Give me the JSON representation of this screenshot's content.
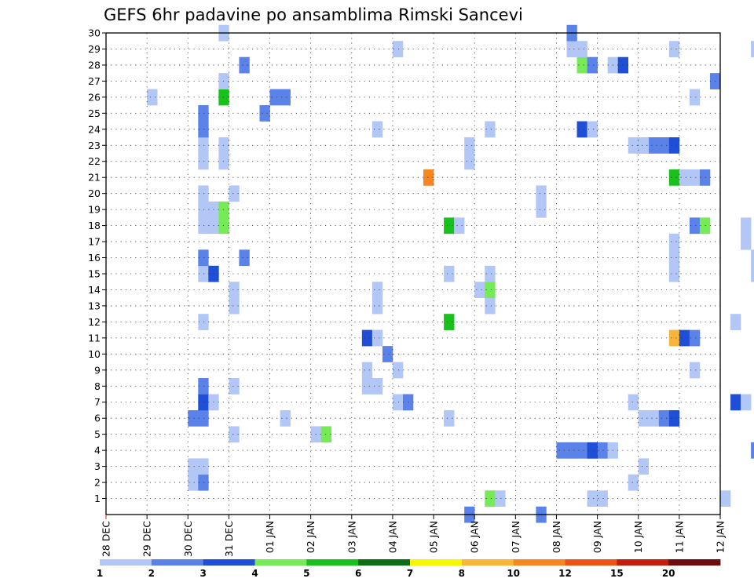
{
  "chart_data": {
    "type": "heatmap",
    "title": "GEFS 6hr padavine po ansamblima Rimski Sancevi",
    "xlabel": "",
    "ylabel": "",
    "x_ticks": [
      "28 DEC",
      "29 DEC",
      "30 DEC",
      "31 DEC",
      "01 JAN",
      "02 JAN",
      "03 JAN",
      "04 JAN",
      "05 JAN",
      "06 JAN",
      "07 JAN",
      "08 JAN",
      "09 JAN",
      "10 JAN",
      "11 JAN",
      "12 JAN"
    ],
    "xlim": [
      "28 DEC",
      "12 JAN"
    ],
    "ylim": [
      0,
      30
    ],
    "y_ticks": [
      1,
      2,
      3,
      4,
      5,
      6,
      7,
      8,
      9,
      10,
      11,
      12,
      13,
      14,
      15,
      16,
      17,
      18,
      19,
      20,
      21,
      22,
      23,
      24,
      25,
      26,
      27,
      28,
      29,
      30
    ],
    "grid": true,
    "step_hours": 6,
    "colorbar": {
      "levels": [
        "1",
        "2",
        "3",
        "4",
        "5",
        "6",
        "7",
        "8",
        "10",
        "12",
        "15",
        "20"
      ],
      "colors": [
        "#b3c7f7",
        "#5b82e8",
        "#1f4fd6",
        "#77ea57",
        "#19c11d",
        "#0b6e12",
        "#f7f703",
        "#f7b53a",
        "#f78520",
        "#ee5515",
        "#c51c10",
        "#6e0d0d"
      ]
    },
    "cells": [
      [
        1,
        "04 JAN",
        9,
        4
      ],
      [
        1,
        "04 JAN",
        10,
        1
      ],
      [
        1,
        "06 JAN",
        11,
        1
      ],
      [
        1,
        "06 JAN",
        12,
        1
      ],
      [
        1,
        "10 JAN",
        26,
        1
      ],
      [
        1,
        "11 JAN",
        4,
        1
      ],
      [
        2,
        "29 DEC",
        4,
        1
      ],
      [
        2,
        "29 DEC",
        5,
        2
      ],
      [
        2,
        "05 JAN",
        19,
        1
      ],
      [
        3,
        "29 DEC",
        4,
        1
      ],
      [
        3,
        "29 DEC",
        5,
        1
      ],
      [
        3,
        "05 JAN",
        20,
        1
      ],
      [
        4,
        "06 JAN",
        11,
        1
      ],
      [
        4,
        "06 JAN",
        12,
        2
      ],
      [
        4,
        "06 JAN",
        13,
        1
      ],
      [
        4,
        "08 JAN",
        0,
        2
      ],
      [
        4,
        "08 JAN",
        1,
        2
      ],
      [
        4,
        "08 JAN",
        2,
        2
      ],
      [
        4,
        "08 JAN",
        3,
        3
      ],
      [
        4,
        "11 JAN",
        7,
        2
      ],
      [
        5,
        "31 DEC",
        0,
        1
      ],
      [
        5,
        "31 DEC",
        8,
        1
      ],
      [
        5,
        "31 DEC",
        9,
        4
      ],
      [
        5,
        "10 JAN",
        18,
        3
      ],
      [
        6,
        "29 DEC",
        4,
        2
      ],
      [
        6,
        "29 DEC",
        5,
        2
      ],
      [
        6,
        "01 JAN",
        1,
        1
      ],
      [
        6,
        "03 JAN",
        9,
        1
      ],
      [
        6,
        "10 JAN",
        0,
        1
      ],
      [
        6,
        "10 JAN",
        1,
        1
      ],
      [
        6,
        "10 JAN",
        2,
        2
      ],
      [
        6,
        "10 JAN",
        3,
        3
      ],
      [
        7,
        "29 DEC",
        5,
        3
      ],
      [
        7,
        "29 DEC",
        6,
        1
      ],
      [
        7,
        "04 JAN",
        0,
        1
      ],
      [
        7,
        "04 JAN",
        1,
        2
      ],
      [
        7,
        "09 JAN",
        3,
        1
      ],
      [
        7,
        "11 JAN",
        5,
        3
      ],
      [
        7,
        "11 JAN",
        6,
        1
      ],
      [
        8,
        "29 DEC",
        5,
        2
      ],
      [
        8,
        "30 DEC",
        17,
        1
      ],
      [
        8,
        "30 DEC",
        18,
        1
      ],
      [
        8,
        "31 DEC",
        0,
        1
      ],
      [
        8,
        "10 JAN",
        15,
        1
      ],
      [
        9,
        "30 DEC",
        17,
        1
      ],
      [
        9,
        "04 JAN",
        0,
        1
      ],
      [
        9,
        "11 JAN",
        1,
        1
      ],
      [
        10,
        "29 DEC",
        23,
        2
      ],
      [
        11,
        "29 DEC",
        22,
        1
      ],
      [
        11,
        "03 JAN",
        1,
        3
      ],
      [
        11,
        "03 JAN",
        2,
        1
      ],
      [
        11,
        "07 JAN",
        15,
        8
      ],
      [
        11,
        "07 JAN",
        16,
        3
      ],
      [
        11,
        "07 JAN",
        17,
        2
      ],
      [
        12,
        "29 DEC",
        5,
        1
      ],
      [
        12,
        "05 JAN",
        1,
        5
      ],
      [
        12,
        "09 JAN",
        13,
        1
      ],
      [
        13,
        "30 DEC",
        18,
        1
      ],
      [
        13,
        "31 DEC",
        0,
        1
      ],
      [
        13,
        "06 JAN",
        1,
        1
      ],
      [
        14,
        "30 DEC",
        18,
        1
      ],
      [
        14,
        "31 DEC",
        0,
        1
      ],
      [
        14,
        "01 JAN",
        21,
        1
      ],
      [
        14,
        "06 JAN",
        0,
        1
      ],
      [
        14,
        "06 JAN",
        1,
        4
      ],
      [
        15,
        "29 DEC",
        5,
        1
      ],
      [
        15,
        "29 DEC",
        6,
        3
      ],
      [
        15,
        "01 JAN",
        21,
        1
      ],
      [
        15,
        "05 JAN",
        1,
        1
      ],
      [
        15,
        "05 JAN",
        23,
        1
      ],
      [
        15,
        "11 JAN",
        7,
        1
      ],
      [
        16,
        "29 DEC",
        5,
        2
      ],
      [
        16,
        "31 DEC",
        1,
        2
      ],
      [
        16,
        "06 JAN",
        19,
        1
      ],
      [
        16,
        "11 JAN",
        7,
        1
      ],
      [
        17,
        "06 JAN",
        19,
        1
      ],
      [
        17,
        "07 JAN",
        22,
        1
      ],
      [
        18,
        "29 DEC",
        5,
        1
      ],
      [
        18,
        "29 DEC",
        6,
        1
      ],
      [
        18,
        "29 DEC",
        7,
        4
      ],
      [
        18,
        "05 JAN",
        1,
        5
      ],
      [
        18,
        "05 JAN",
        2,
        1
      ],
      [
        18,
        "07 JAN",
        22,
        1
      ],
      [
        18,
        "11 JAN",
        1,
        2
      ],
      [
        18,
        "11 JAN",
        2,
        4
      ],
      [
        19,
        "29 DEC",
        5,
        1
      ],
      [
        19,
        "29 DEC",
        6,
        1
      ],
      [
        19,
        "29 DEC",
        7,
        4
      ],
      [
        19,
        "04 JAN",
        14,
        1
      ],
      [
        19,
        "08 JAN",
        21,
        1
      ],
      [
        20,
        "29 DEC",
        5,
        1
      ],
      [
        20,
        "29 DEC",
        8,
        1
      ],
      [
        20,
        "04 JAN",
        14,
        1
      ],
      [
        20,
        "08 JAN",
        21,
        1
      ],
      [
        21,
        "30 DEC",
        23,
        9
      ],
      [
        21,
        "09 JAN",
        7,
        5
      ],
      [
        21,
        "09 JAN",
        8,
        8
      ],
      [
        21,
        "09 JAN",
        9,
        1
      ],
      [
        21,
        "09 JAN",
        10,
        2
      ],
      [
        21,
        "10 JAN",
        4,
        1
      ],
      [
        22,
        "29 DEC",
        5,
        1
      ],
      [
        22,
        "29 DEC",
        7,
        1
      ],
      [
        22,
        "01 JAN",
        19,
        1
      ],
      [
        22,
        "08 JAN",
        20,
        1
      ],
      [
        22,
        "08 JAN",
        21,
        1
      ],
      [
        23,
        "29 DEC",
        5,
        1
      ],
      [
        23,
        "29 DEC",
        7,
        1
      ],
      [
        23,
        "01 JAN",
        19,
        1
      ],
      [
        23,
        "08 JAN",
        20,
        1
      ],
      [
        23,
        "08 JAN",
        21,
        1
      ],
      [
        23,
        "09 JAN",
        3,
        1
      ],
      [
        23,
        "09 JAN",
        4,
        2
      ],
      [
        23,
        "09 JAN",
        5,
        2
      ],
      [
        23,
        "09 JAN",
        6,
        2
      ],
      [
        23,
        "09 JAN",
        7,
        3
      ],
      [
        23,
        "10 JAN",
        0,
        1
      ],
      [
        24,
        "29 DEC",
        5,
        2
      ],
      [
        24,
        "03 JAN",
        2,
        1
      ],
      [
        24,
        "03 JAN",
        13,
        1
      ],
      [
        24,
        "08 JAN",
        2,
        3
      ],
      [
        24,
        "08 JAN",
        3,
        1
      ],
      [
        25,
        "29 DEC",
        5,
        2
      ],
      [
        25,
        "31 DEC",
        3,
        2
      ],
      [
        26,
        "29 DEC",
        0,
        1
      ],
      [
        26,
        "29 DEC",
        7,
        5
      ],
      [
        26,
        "30 DEC",
        8,
        2
      ],
      [
        26,
        "30 DEC",
        9,
        2
      ],
      [
        26,
        "10 JAN",
        5,
        1
      ],
      [
        27,
        "29 DEC",
        7,
        1
      ],
      [
        27,
        "11 JAN",
        3,
        2
      ],
      [
        28,
        "31 DEC",
        1,
        2
      ],
      [
        28,
        "04 JAN",
        21,
        1
      ],
      [
        28,
        "04 JAN",
        22,
        3
      ],
      [
        28,
        "08 JAN",
        2,
        4
      ],
      [
        28,
        "08 JAN",
        3,
        2
      ],
      [
        29,
        "04 JAN",
        0,
        1
      ],
      [
        29,
        "05 JAN",
        13,
        1
      ],
      [
        29,
        "05 JAN",
        14,
        1
      ],
      [
        29,
        "06 JAN",
        19,
        1
      ],
      [
        29,
        "08 JAN",
        19,
        1
      ],
      [
        30,
        "29 DEC",
        7,
        1
      ],
      [
        30,
        "08 JAN",
        1,
        2
      ],
      [
        0,
        "05 JAN",
        3,
        2
      ],
      [
        0,
        "05 JAN",
        10,
        2
      ]
    ]
  }
}
